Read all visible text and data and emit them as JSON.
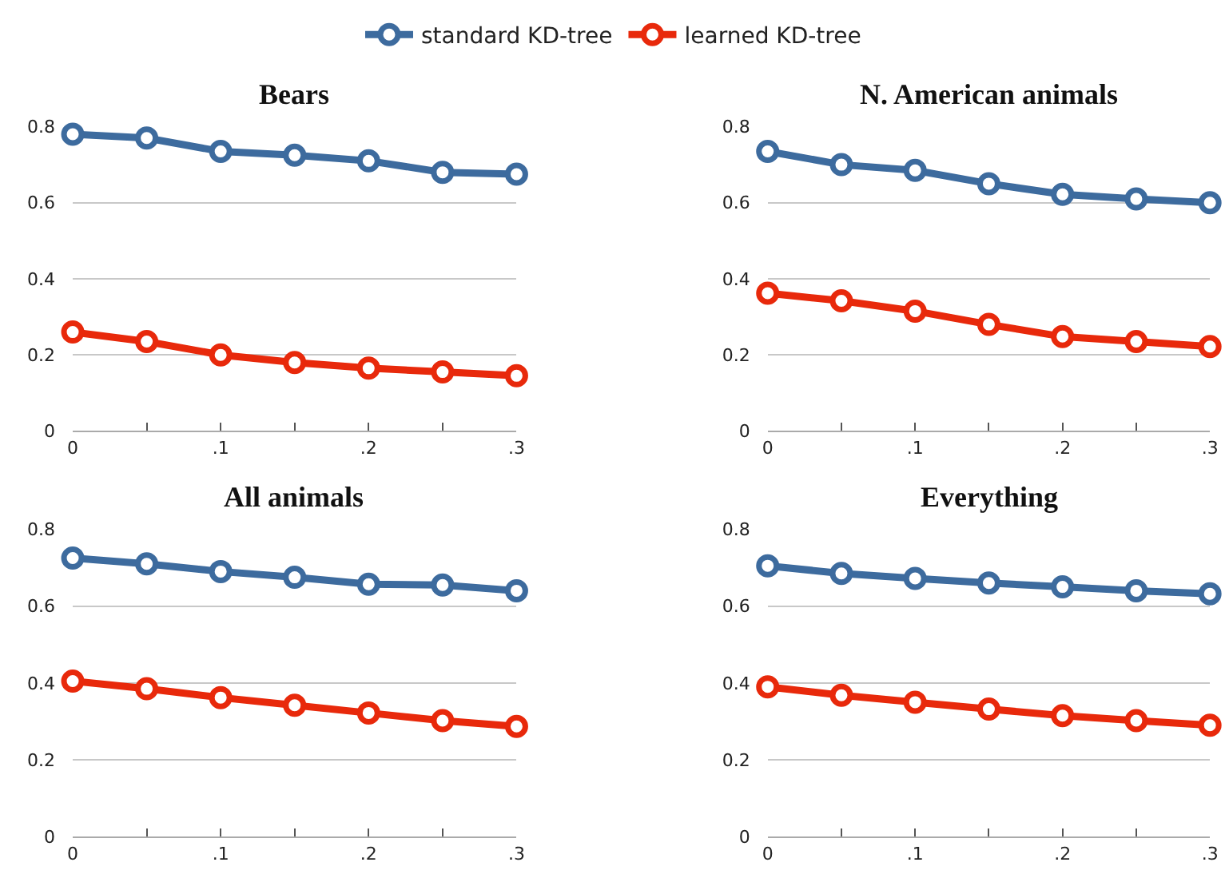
{
  "chart_data": [
    {
      "type": "line",
      "title": "Bears",
      "legend": "top",
      "grid": "y",
      "marker": "circle",
      "line_style": "solid",
      "x": [
        0,
        0.05,
        0.1,
        0.15,
        0.2,
        0.25,
        0.3
      ],
      "xlim": [
        0,
        0.3
      ],
      "xticks": [
        0,
        {
          "value": 0.05,
          "label": null
        },
        {
          "value": 0.1,
          "label": ".1"
        },
        {
          "value": 0.15,
          "label": null
        },
        {
          "value": 0.2,
          "label": ".2"
        },
        {
          "value": 0.25,
          "label": null
        },
        {
          "value": 0.3,
          "label": ".3"
        }
      ],
      "ylim": [
        0,
        0.8
      ],
      "yticks": [
        0,
        0.2,
        0.4,
        0.6,
        0.8
      ],
      "series": [
        {
          "name": "standard KD-tree",
          "color": "#3d6b9e",
          "values": [
            0.78,
            0.77,
            0.735,
            0.725,
            0.71,
            0.68,
            0.675
          ]
        },
        {
          "name": "learned KD-tree",
          "color": "#e8290b",
          "values": [
            0.26,
            0.235,
            0.2,
            0.18,
            0.165,
            0.155,
            0.145
          ]
        }
      ]
    },
    {
      "type": "line",
      "title": "N. American animals",
      "grid": "y",
      "marker": "circle",
      "line_style": "solid",
      "x": [
        0,
        0.05,
        0.1,
        0.15,
        0.2,
        0.25,
        0.3
      ],
      "xlim": [
        0,
        0.3
      ],
      "xticks": [
        0,
        {
          "value": 0.05,
          "label": null
        },
        {
          "value": 0.1,
          "label": ".1"
        },
        {
          "value": 0.15,
          "label": null
        },
        {
          "value": 0.2,
          "label": ".2"
        },
        {
          "value": 0.25,
          "label": null
        },
        {
          "value": 0.3,
          "label": ".3"
        }
      ],
      "ylim": [
        0,
        0.8
      ],
      "yticks": [
        0,
        0.2,
        0.4,
        0.6,
        0.8
      ],
      "series": [
        {
          "color": "#3d6b9e",
          "values": [
            0.735,
            0.7,
            0.685,
            0.65,
            0.622,
            0.61,
            0.6
          ]
        },
        {
          "color": "#e8290b",
          "values": [
            0.362,
            0.342,
            0.315,
            0.28,
            0.248,
            0.235,
            0.222
          ]
        }
      ]
    },
    {
      "type": "line",
      "title": "All animals",
      "grid": "y",
      "marker": "circle",
      "line_style": "solid",
      "x": [
        0,
        0.05,
        0.1,
        0.15,
        0.2,
        0.25,
        0.3
      ],
      "xlim": [
        0,
        0.3
      ],
      "xticks": [
        0,
        {
          "value": 0.05,
          "label": null
        },
        {
          "value": 0.1,
          "label": ".1"
        },
        {
          "value": 0.15,
          "label": null
        },
        {
          "value": 0.2,
          "label": ".2"
        },
        {
          "value": 0.25,
          "label": null
        },
        {
          "value": 0.3,
          "label": ".3"
        }
      ],
      "ylim": [
        0,
        0.8
      ],
      "yticks": [
        0,
        0.2,
        0.4,
        0.6,
        0.8
      ],
      "series": [
        {
          "color": "#3d6b9e",
          "values": [
            0.725,
            0.71,
            0.69,
            0.675,
            0.657,
            0.655,
            0.64
          ]
        },
        {
          "color": "#e8290b",
          "values": [
            0.405,
            0.385,
            0.362,
            0.342,
            0.322,
            0.302,
            0.287
          ]
        }
      ]
    },
    {
      "type": "line",
      "title": "Everything",
      "grid": "y",
      "marker": "circle",
      "line_style": "solid",
      "x": [
        0,
        0.05,
        0.1,
        0.15,
        0.2,
        0.25,
        0.3
      ],
      "xlim": [
        0,
        0.3
      ],
      "xticks": [
        0,
        {
          "value": 0.05,
          "label": null
        },
        {
          "value": 0.1,
          "label": ".1"
        },
        {
          "value": 0.15,
          "label": null
        },
        {
          "value": 0.2,
          "label": ".2"
        },
        {
          "value": 0.25,
          "label": null
        },
        {
          "value": 0.3,
          "label": ".3"
        }
      ],
      "ylim": [
        0,
        0.8
      ],
      "yticks": [
        0,
        0.2,
        0.4,
        0.6,
        0.8
      ],
      "series": [
        {
          "color": "#3d6b9e",
          "values": [
            0.705,
            0.685,
            0.672,
            0.66,
            0.65,
            0.64,
            0.632
          ]
        },
        {
          "color": "#e8290b",
          "values": [
            0.39,
            0.368,
            0.35,
            0.332,
            0.315,
            0.302,
            0.29
          ]
        }
      ]
    }
  ]
}
